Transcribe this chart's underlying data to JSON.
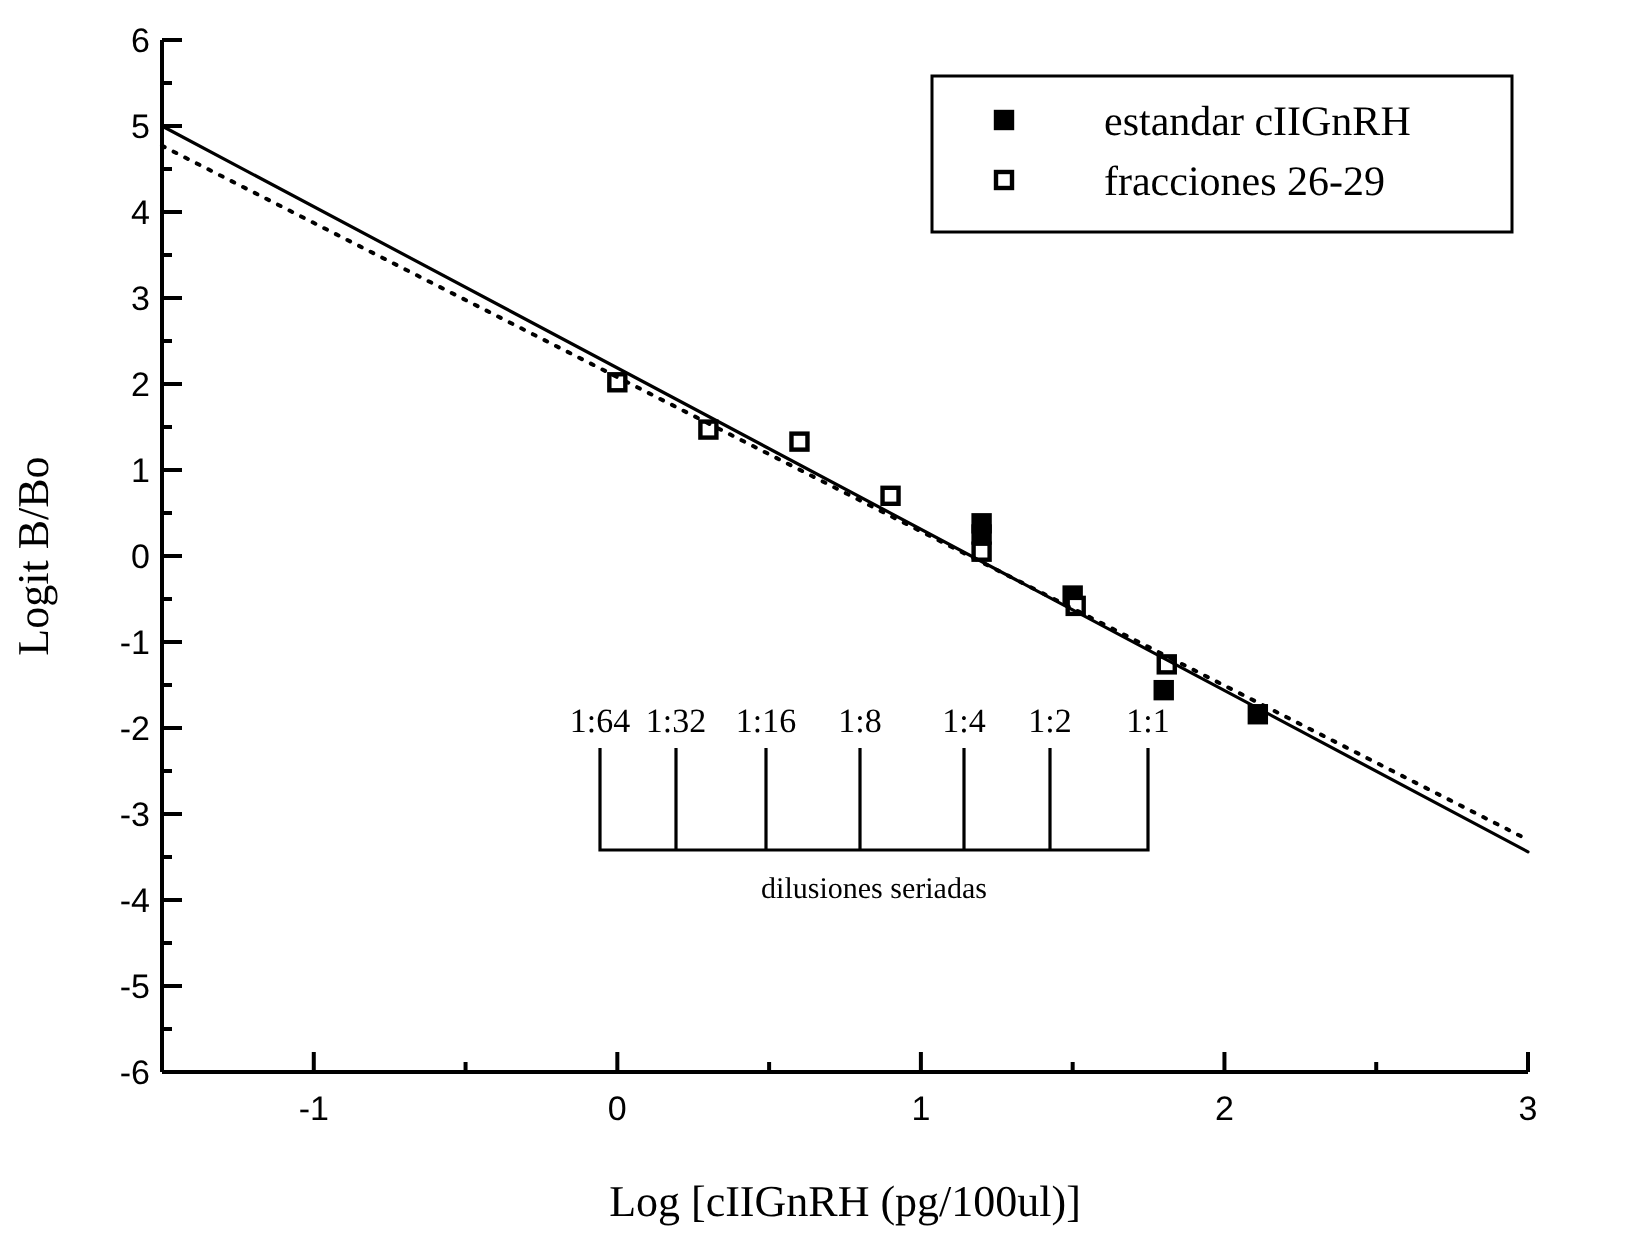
{
  "chart_data": {
    "type": "scatter",
    "xlabel": "Log [cIIGnRH (pg/100ul)]",
    "ylabel": "Logit B/Bo",
    "xlim": [
      -1.5,
      3
    ],
    "xticks": [
      {
        "value": -1.5,
        "label": null
      },
      -1,
      {
        "value": -0.5,
        "label": null
      },
      0,
      {
        "value": 0.5,
        "label": null
      },
      1,
      {
        "value": 1.5,
        "label": null
      },
      2,
      {
        "value": 2.5,
        "label": null
      },
      3
    ],
    "ylim": [
      -6,
      6
    ],
    "yticks": [
      -6,
      {
        "value": -5.5,
        "label": null
      },
      -5,
      {
        "value": -4.5,
        "label": null
      },
      -4,
      {
        "value": -3.5,
        "label": null
      },
      -3,
      {
        "value": -2.5,
        "label": null
      },
      -2,
      {
        "value": -1.5,
        "label": null
      },
      -1,
      {
        "value": -0.5,
        "label": null
      },
      0,
      {
        "value": 0.5,
        "label": null
      },
      1,
      {
        "value": 1.5,
        "label": null
      },
      2,
      {
        "value": 2.5,
        "label": null
      },
      3,
      {
        "value": 3.5,
        "label": null
      },
      4,
      {
        "value": 4.5,
        "label": null
      },
      5,
      {
        "value": 5.5,
        "label": null
      },
      6
    ],
    "legend": "top right",
    "marker": "square",
    "series": [
      {
        "name": "estandar cIIGnRH",
        "color": "#000000",
        "x": [
          1.2,
          1.2,
          1.5,
          1.8,
          2.11
        ],
        "values": [
          0.38,
          0.25,
          -0.46,
          -1.56,
          -1.84
        ]
      },
      {
        "name": "fracciones 26-29",
        "color": "#ffffff",
        "x": [
          0,
          0.3,
          0.6,
          0.9,
          1.2,
          1.51,
          1.81
        ],
        "values": [
          2.02,
          1.47,
          1.33,
          0.7,
          0.05,
          -0.58,
          -1.26
        ]
      },
      {
        "type": "line",
        "color": "#000000",
        "line_style": "solid",
        "marker": "none",
        "x": [
          -1.5,
          3
        ],
        "values": [
          5.0,
          -3.44
        ]
      },
      {
        "type": "line",
        "color": "#000000",
        "line_style": "dotted",
        "marker": "none",
        "x": [
          -1.5,
          3
        ],
        "values": [
          4.77,
          -3.3
        ]
      }
    ],
    "annotations": [
      "1:64",
      "1:32",
      "1:16",
      "1:8",
      "1:4",
      "1:2",
      "1:1",
      "dilusiones seriadas"
    ]
  }
}
